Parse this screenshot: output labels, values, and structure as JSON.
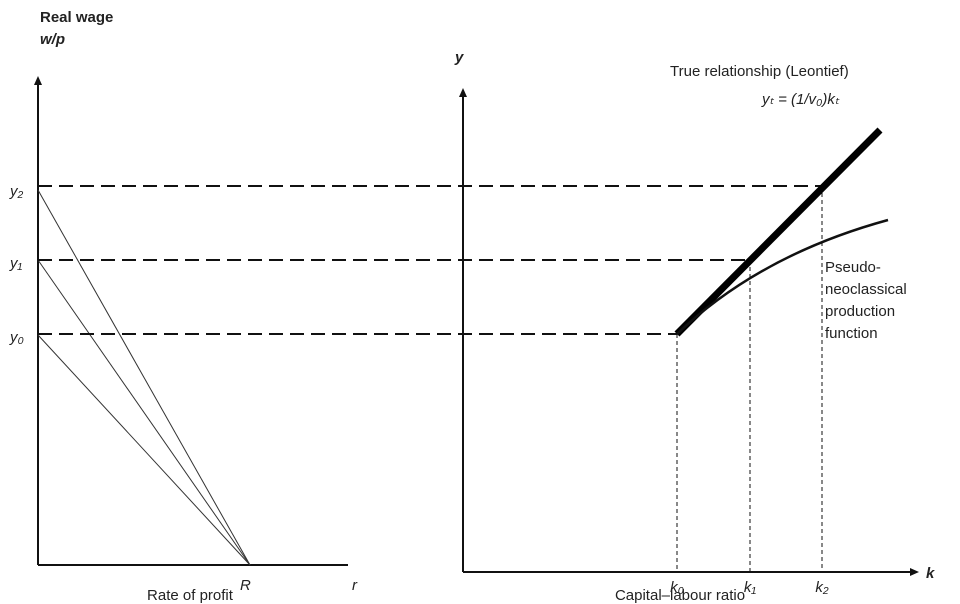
{
  "left_panel": {
    "y_axis_label": "Real wage",
    "y_axis_symbol": "w/p",
    "y_ticks": [
      "y₂",
      "y₁",
      "y₀"
    ],
    "x_tick": "R",
    "x_axis_symbol": "r",
    "x_axis_label": "Rate of profit"
  },
  "right_panel": {
    "y_axis_symbol": "y",
    "true_relationship": "True relationship (Leontief)",
    "equation": "yₜ = (1/v₀)kₜ",
    "pseudo_label": [
      "Pseudo-",
      "neoclassical",
      "production",
      "function"
    ],
    "x_ticks": [
      "k₀",
      "k₁",
      "k₂"
    ],
    "x_axis_symbol": "k",
    "x_axis_label": "Capital–labour ratio"
  }
}
